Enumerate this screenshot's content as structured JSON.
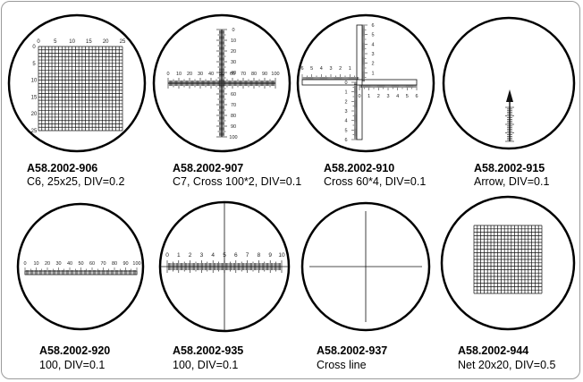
{
  "items": [
    {
      "code": "A58.2002-906",
      "desc": "C6, 25x25, DIV=0.2",
      "type": "grid",
      "divisions": 25,
      "scale_labels": [
        "0",
        "5",
        "10",
        "15",
        "20",
        "25"
      ]
    },
    {
      "code": "A58.2002-907",
      "desc": "C7, Cross 100*2, DIV=0.1",
      "type": "cross-scale",
      "scale_labels": [
        "0",
        "10",
        "20",
        "30",
        "40",
        "50",
        "60",
        "70",
        "80",
        "90",
        "100"
      ]
    },
    {
      "code": "A58.2002-910",
      "desc": "Cross 60*4, DIV=0.1",
      "type": "cross-quadrant",
      "scale_labels": [
        "6",
        "5",
        "4",
        "3",
        "2",
        "1",
        "0",
        "1",
        "2",
        "3",
        "4",
        "5",
        "6"
      ]
    },
    {
      "code": "A58.2002-915",
      "desc": "Arrow, DIV=0.1",
      "type": "arrow"
    },
    {
      "code": "A58.2002-920",
      "desc": "100, DIV=0.1",
      "type": "linear-scale",
      "scale_labels": [
        "0",
        "10",
        "20",
        "30",
        "40",
        "50",
        "60",
        "70",
        "80",
        "90",
        "100"
      ]
    },
    {
      "code": "A58.2002-935",
      "desc": "100, DIV=0.1",
      "type": "linear-scale-cross",
      "scale_labels": [
        "0",
        "1",
        "2",
        "3",
        "4",
        "5",
        "6",
        "7",
        "8",
        "9",
        "10"
      ]
    },
    {
      "code": "A58.2002-937",
      "desc": "Cross line",
      "type": "cross-line"
    },
    {
      "code": "A58.2002-944",
      "desc": "Net 20x20, DIV=0.5",
      "type": "grid",
      "divisions": 20
    }
  ]
}
